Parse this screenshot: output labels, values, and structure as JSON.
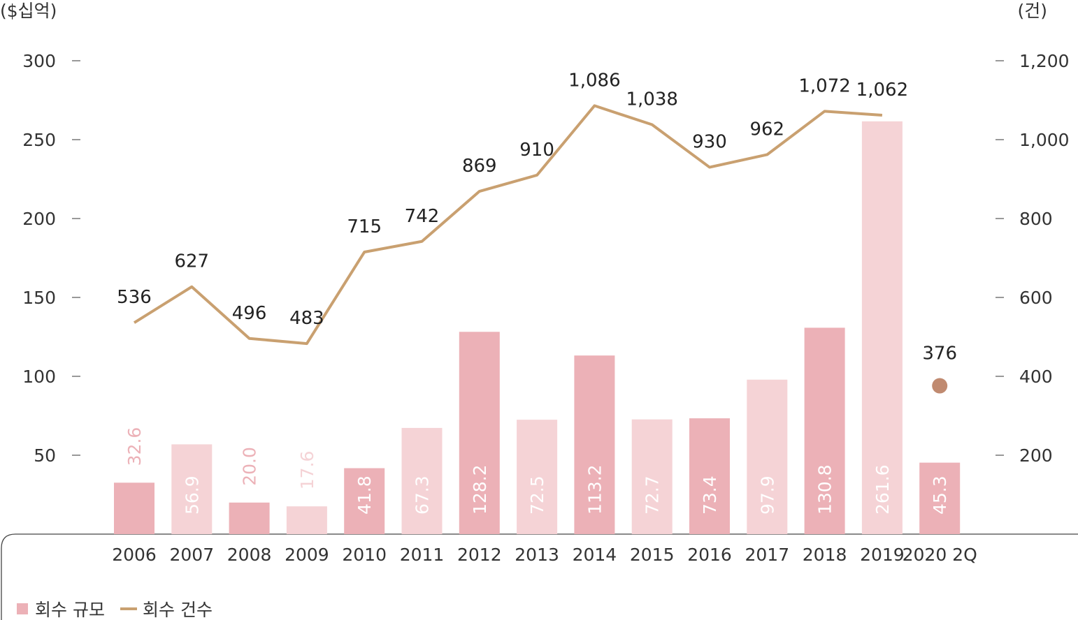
{
  "chart_data": {
    "type": "bar",
    "units_left": "($십억)",
    "units_right": "(건)",
    "categories": [
      "2006",
      "2007",
      "2008",
      "2009",
      "2010",
      "2011",
      "2012",
      "2013",
      "2014",
      "2015",
      "2016",
      "2017",
      "2018",
      "2019",
      "2020 2Q"
    ],
    "series": [
      {
        "name": "회수 규모",
        "type": "bar",
        "axis": "left",
        "values": [
          32.6,
          56.9,
          20.0,
          17.6,
          41.8,
          67.3,
          128.2,
          72.5,
          113.2,
          72.7,
          73.4,
          97.9,
          130.8,
          261.6,
          45.3
        ],
        "labels": [
          "32.6",
          "56.9",
          "20.0",
          "17.6",
          "41.8",
          "67.3",
          "128.2",
          "72.5",
          "113.2",
          "72.7",
          "73.4",
          "97.9",
          "130.8",
          "261.6",
          "45.3"
        ],
        "colors": [
          "#ecb1b7",
          "#f5d3d6",
          "#ecb1b7",
          "#f5d3d6",
          "#ecb1b7",
          "#f5d3d6",
          "#ecb1b7",
          "#f5d3d6",
          "#ecb1b7",
          "#f5d3d6",
          "#ecb1b7",
          "#f5d3d6",
          "#ecb1b7",
          "#f5d3d6",
          "#ecb1b7"
        ]
      },
      {
        "name": "회수 건수",
        "type": "line",
        "axis": "right",
        "values": [
          536,
          627,
          496,
          483,
          715,
          742,
          869,
          910,
          1086,
          1038,
          930,
          962,
          1072,
          1062,
          376
        ],
        "labels": [
          "536",
          "627",
          "496",
          "483",
          "715",
          "742",
          "869",
          "910",
          "1,086",
          "1,038",
          "930",
          "962",
          "1,072",
          "1,062",
          "376"
        ],
        "color": "#c9a070",
        "marker_color": "#c08a70"
      }
    ],
    "y_left": {
      "ylim": [
        0,
        300
      ],
      "ticks": [
        50,
        100,
        150,
        200,
        250,
        300
      ],
      "tick_labels": [
        "50",
        "100",
        "150",
        "200",
        "250",
        "300"
      ]
    },
    "y_right": {
      "ylim": [
        0,
        1200
      ],
      "ticks": [
        200,
        400,
        600,
        800,
        1000,
        1200
      ],
      "tick_labels": [
        "200",
        "400",
        "600",
        "800",
        "1,000",
        "1,200"
      ]
    },
    "grid": false,
    "legend": {
      "placement": "bottom-left"
    }
  }
}
